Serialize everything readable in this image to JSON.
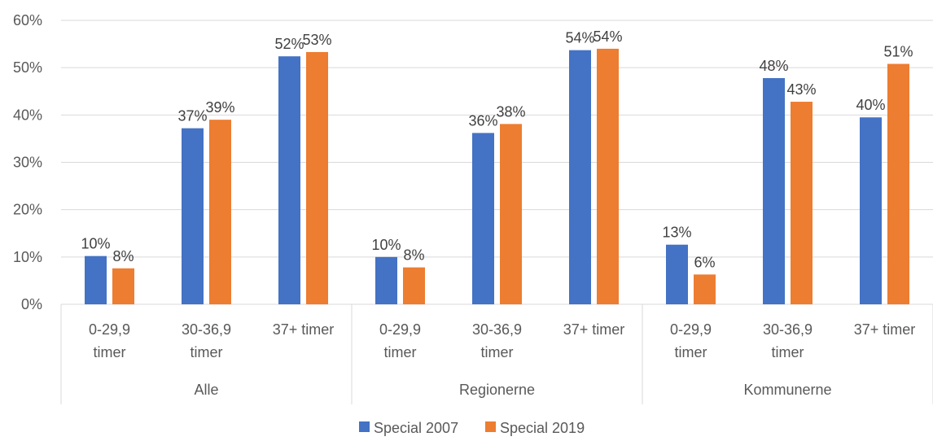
{
  "chart_data": {
    "type": "bar",
    "title": "",
    "xlabel": "",
    "ylabel": "",
    "ylim": [
      0,
      0.6
    ],
    "yticks": [
      "0%",
      "10%",
      "20%",
      "30%",
      "40%",
      "50%",
      "60%"
    ],
    "grid": true,
    "legend_position": "bottom",
    "groups": [
      {
        "label": "Alle",
        "categories": [
          [
            "0-29,9",
            "timer"
          ],
          [
            "30-36,9",
            "timer"
          ],
          [
            "37+ timer"
          ]
        ]
      },
      {
        "label": "Regionerne",
        "categories": [
          [
            "0-29,9",
            "timer"
          ],
          [
            "30-36,9",
            "timer"
          ],
          [
            "37+ timer"
          ]
        ]
      },
      {
        "label": "Kommunerne",
        "categories": [
          [
            "0-29,9",
            "timer"
          ],
          [
            "30-36,9",
            "timer"
          ],
          [
            "37+ timer"
          ]
        ]
      }
    ],
    "series": [
      {
        "name": "Special 2007",
        "color": "#4472C4",
        "values": [
          0.102,
          0.372,
          0.524,
          0.1,
          0.362,
          0.537,
          0.126,
          0.478,
          0.395
        ],
        "labels": [
          "10%",
          "37%",
          "52%",
          "10%",
          "36%",
          "54%",
          "13%",
          "48%",
          "40%"
        ]
      },
      {
        "name": "Special 2019",
        "color": "#ED7D31",
        "values": [
          0.076,
          0.39,
          0.533,
          0.078,
          0.381,
          0.54,
          0.063,
          0.428,
          0.508
        ],
        "labels": [
          "8%",
          "39%",
          "53%",
          "8%",
          "38%",
          "54%",
          "6%",
          "43%",
          "51%"
        ]
      }
    ]
  }
}
